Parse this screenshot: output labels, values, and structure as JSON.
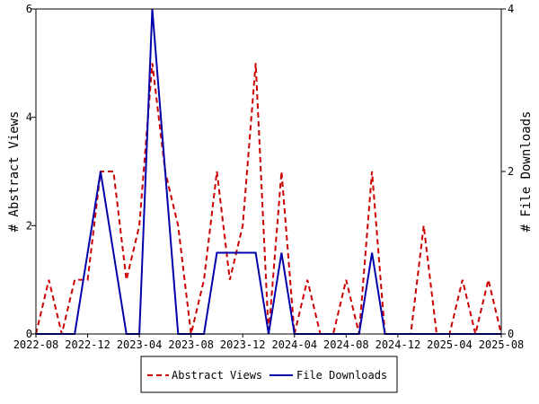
{
  "chart_data": {
    "type": "line",
    "x_ticks": [
      "2022-08",
      "2022-12",
      "2023-04",
      "2023-08",
      "2023-12",
      "2024-04",
      "2024-08",
      "2024-12",
      "2025-04",
      "2025-08"
    ],
    "x_start": "2022-08",
    "x_step_months": 1,
    "xlim_months": [
      0,
      36
    ],
    "y_left": {
      "label": "# Abstract Views",
      "ticks": [
        0,
        2,
        4,
        6
      ],
      "range": [
        0,
        6
      ]
    },
    "y_right": {
      "label": "# File Downloads",
      "ticks": [
        0,
        2,
        4
      ],
      "range": [
        0,
        4
      ]
    },
    "legend_position": "bottom",
    "grid": false,
    "series": [
      {
        "name": "Abstract Views",
        "axis": "left",
        "color": "#cc0000",
        "style": "dashed",
        "values": [
          0,
          1,
          0,
          1,
          1,
          3,
          3,
          1,
          2,
          5,
          3,
          2,
          0,
          1,
          3,
          1,
          2,
          5,
          0,
          3,
          0,
          1,
          0,
          0,
          1,
          0,
          3,
          0,
          0,
          0,
          2,
          0,
          0,
          1,
          0,
          1,
          0
        ]
      },
      {
        "name": "File Downloads",
        "axis": "right",
        "color": "#0000aa",
        "style": "solid",
        "values": [
          0,
          0,
          0,
          0,
          1,
          2,
          1,
          0,
          0,
          4,
          2,
          0,
          0,
          0,
          1,
          1,
          1,
          1,
          0,
          1,
          0,
          0,
          0,
          0,
          0,
          0,
          1,
          0,
          0,
          0,
          0,
          0,
          0,
          0,
          0,
          0,
          0
        ]
      }
    ]
  }
}
